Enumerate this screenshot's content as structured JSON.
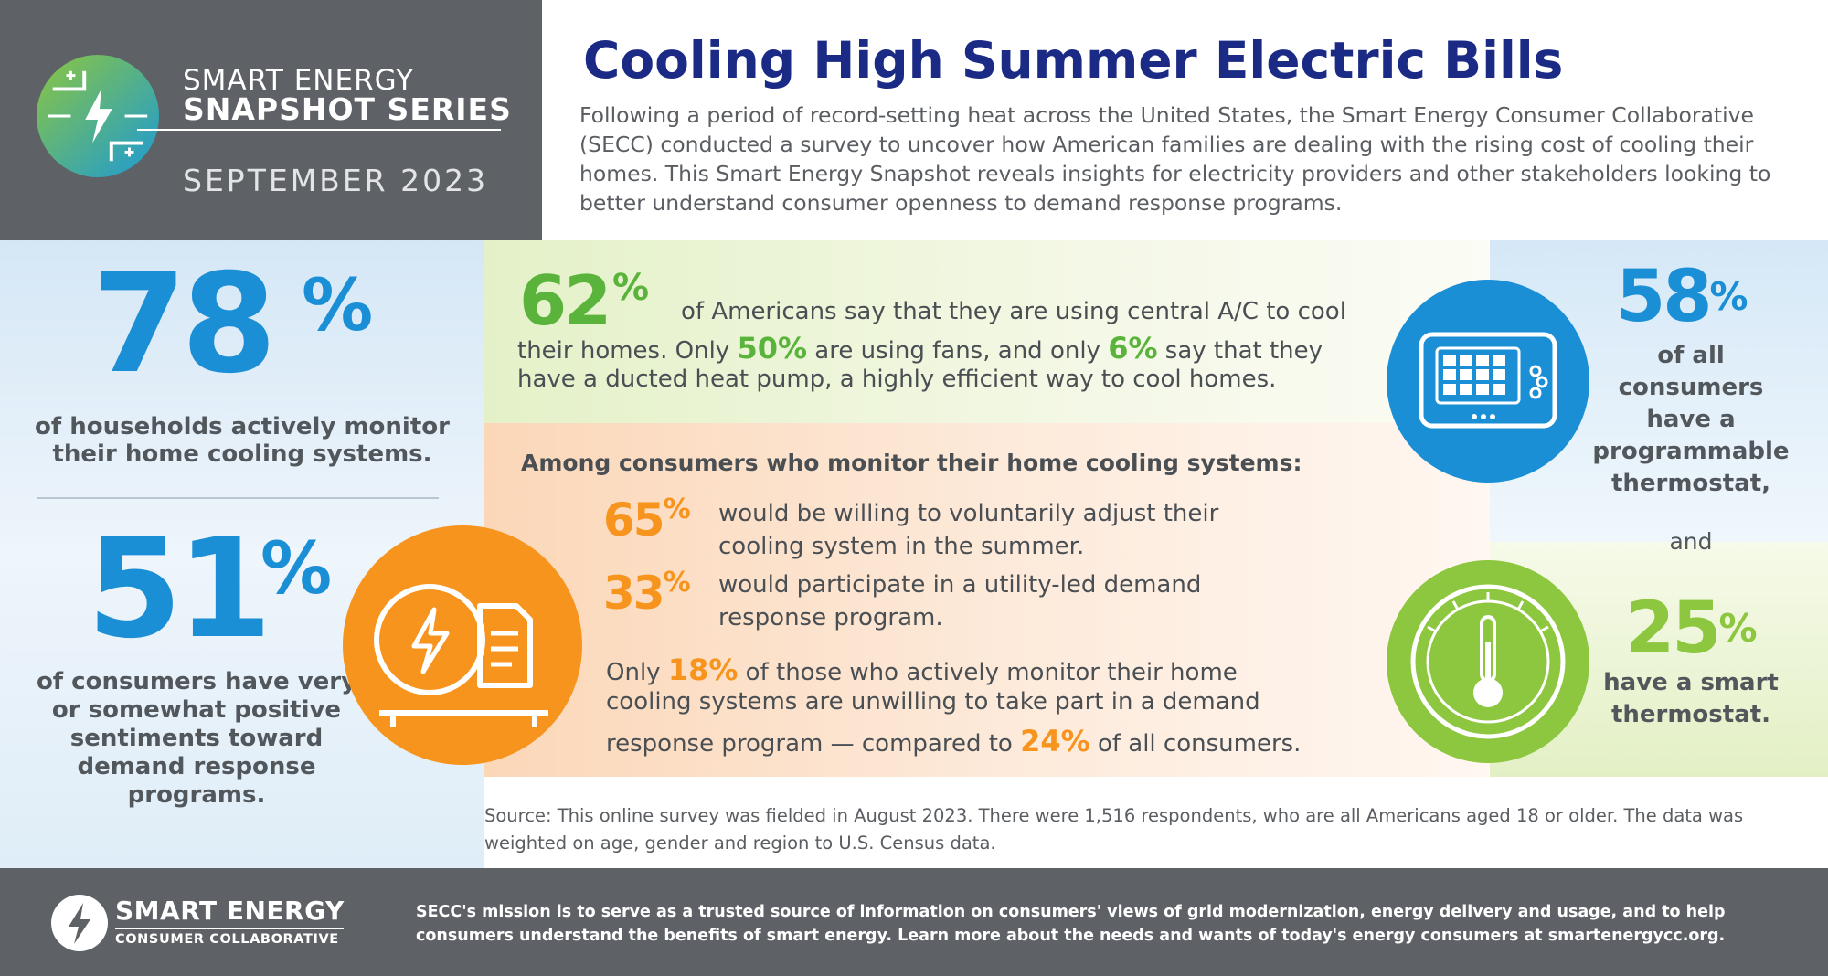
{
  "header": {
    "series_line1": "SMART ENERGY",
    "series_line2": "SNAPSHOT SERIES",
    "date": "SEPTEMBER 2023",
    "title": "Cooling High Summer Electric Bills",
    "intro": "Following a period of record-setting heat across the United States, the Smart Energy Consumer Collaborative (SECC) conducted a survey to uncover how American families are dealing with the rising cost of cooling their homes. This Smart Energy Snapshot reveals insights for electricity providers and other stakeholders looking to better understand consumer openness to demand response programs."
  },
  "left": {
    "stat1_number": "78",
    "stat1_pct": "%",
    "stat1_text": "of households actively monitor their home cooling systems.",
    "stat2_number": "51",
    "stat2_pct": "%",
    "stat2_text": "of consumers have very or somewhat positive sentiments toward demand response programs."
  },
  "green": {
    "stat_number": "62",
    "stat_pct": "%",
    "line1": "of Americans say that they are using central A/C to cool",
    "line2_a": "their homes. Only ",
    "line2_fans": "50%",
    "line2_b": " are using fans, and only ",
    "line2_hp": "6%",
    "line2_c": " say that they",
    "line3": "have a ducted heat pump, a highly efficient way to cool homes."
  },
  "orange": {
    "heading": "Among consumers who monitor their home cooling systems:",
    "s65_number": "65",
    "s65_pct": "%",
    "s65_text": "would be willing to voluntarily adjust their cooling system in the summer.",
    "s33_number": "33",
    "s33_pct": "%",
    "s33_text": "would participate in a utility-led demand response program.",
    "only_l1_a": "Only ",
    "only_l1_num": "18%",
    "only_l1_b": " of those who actively monitor their home",
    "only_l2": "cooling systems are unwilling to take part in a demand",
    "only_l3_a": "response program — compared to ",
    "only_l3_num": "24%",
    "only_l3_b": " of all consumers."
  },
  "right": {
    "s58_number": "58",
    "s58_pct": "%",
    "s58_text": "of all consumers have a programmable thermostat,",
    "and": "and",
    "s25_number": "25",
    "s25_pct": "%",
    "s25_text": "have a smart thermostat."
  },
  "source": "Source: This online survey was fielded in August 2023. There were 1,516 respondents, who are all Americans aged 18 or older. The data was weighted on age, gender and region to U.S. Census data.",
  "footer": {
    "org_name": "SMART ENERGY",
    "org_sub": "CONSUMER COLLABORATIVE",
    "mission": "SECC's mission  is to serve as a trusted source of information on consumers' views of grid modernization, energy delivery and usage, and to help consumers understand the benefits of smart energy. Learn more about the needs and wants of today's energy consumers at smartenergycc.org."
  },
  "colors": {
    "title_blue": "#1a2a85",
    "stat_blue": "#1b8fd6",
    "stat_green": "#5ab33a",
    "light_green": "#8dc63f",
    "stat_orange": "#f7941d",
    "header_gray": "#5e6266"
  },
  "icons": [
    "snapshot-series-logo-icon",
    "bill-lightning-icon",
    "programmable-thermostat-icon",
    "smart-thermostat-icon",
    "secc-logo-icon"
  ]
}
